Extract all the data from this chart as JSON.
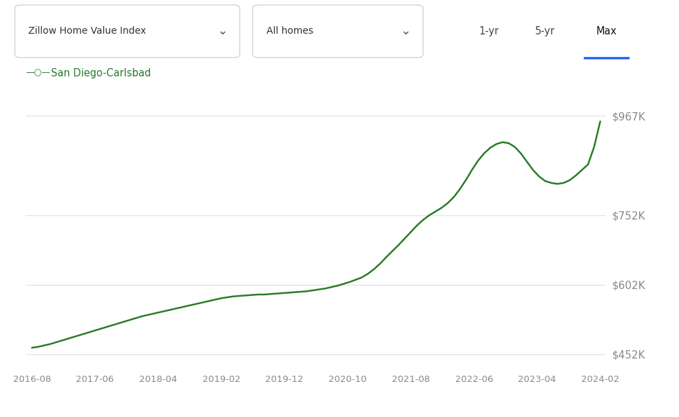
{
  "legend_label": "San Diego-Carlsbad",
  "legend_marker_color": "#2a7a2a",
  "line_color": "#2a7a2a",
  "background_color": "#ffffff",
  "ytick_labels": [
    "$452K",
    "$602K",
    "$752K",
    "$967K"
  ],
  "ytick_values": [
    452000,
    602000,
    752000,
    967000
  ],
  "ylim": [
    420000,
    1010000
  ],
  "xtick_labels": [
    "2016-08",
    "2017-06",
    "2018-04",
    "2019-02",
    "2019-12",
    "2020-10",
    "2021-08",
    "2022-06",
    "2023-04",
    "2024-02"
  ],
  "active_button_color": "#2563eb",
  "btn1_label": "Zillow Home Value Index",
  "btn2_label": "All homes",
  "time_labels": [
    "1-yr",
    "5-yr",
    "Max"
  ],
  "x_data": [
    0,
    1,
    2,
    3,
    4,
    5,
    6,
    7,
    8,
    9,
    10,
    11,
    12,
    13,
    14,
    15,
    16,
    17,
    18,
    19,
    20,
    21,
    22,
    23,
    24,
    25,
    26,
    27,
    28,
    29,
    30,
    31,
    32,
    33,
    34,
    35,
    36,
    37,
    38,
    39,
    40,
    41,
    42,
    43,
    44,
    45,
    46,
    47,
    48,
    49,
    50,
    51,
    52,
    53,
    54,
    55,
    56,
    57,
    58,
    59,
    60,
    61,
    62,
    63,
    64,
    65,
    66,
    67,
    68,
    69,
    70,
    71,
    72,
    73,
    74,
    75,
    76,
    77,
    78,
    79,
    80,
    81,
    82,
    83,
    84,
    85,
    86,
    87,
    88,
    89,
    90,
    91,
    92,
    93
  ],
  "y_data": [
    466000,
    468000,
    471000,
    474000,
    478000,
    482000,
    486000,
    490000,
    494000,
    498000,
    502000,
    506000,
    510000,
    514000,
    518000,
    522000,
    526000,
    530000,
    534000,
    537000,
    540000,
    543000,
    546000,
    549000,
    552000,
    555000,
    558000,
    561000,
    564000,
    567000,
    570000,
    573000,
    575000,
    577000,
    578000,
    579000,
    580000,
    581000,
    581000,
    582000,
    583000,
    584000,
    585000,
    586000,
    587000,
    588000,
    590000,
    592000,
    594000,
    597000,
    600000,
    604000,
    608000,
    613000,
    618000,
    626000,
    636000,
    648000,
    662000,
    675000,
    688000,
    702000,
    716000,
    730000,
    742000,
    752000,
    760000,
    768000,
    778000,
    791000,
    808000,
    828000,
    850000,
    870000,
    886000,
    898000,
    906000,
    910000,
    908000,
    900000,
    886000,
    868000,
    850000,
    836000,
    826000,
    822000,
    820000,
    822000,
    828000,
    838000,
    850000,
    862000,
    900000,
    955000
  ]
}
